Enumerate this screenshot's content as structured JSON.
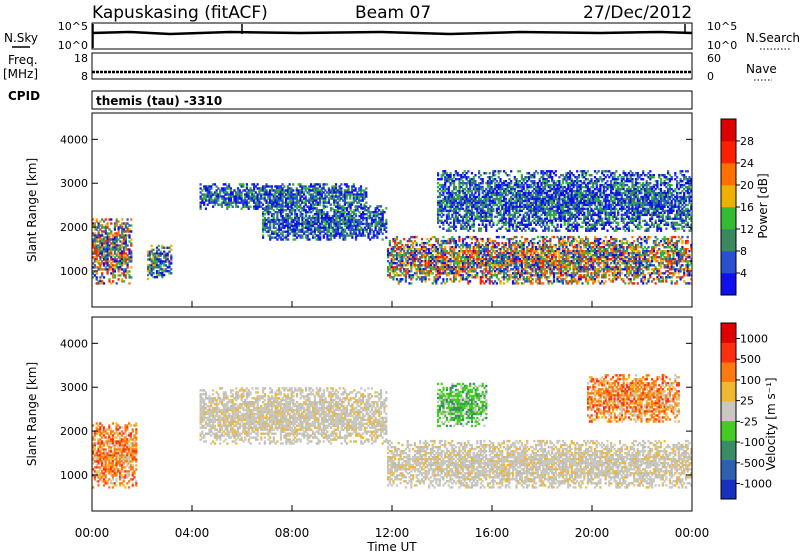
{
  "header": {
    "site": "Kapuskasing (fitACF)",
    "beam": "Beam 07",
    "date": "27/Dec/2012"
  },
  "aux_panels": {
    "nsky_label": "N.Sky",
    "nsky_ticks": [
      "10^5",
      "10^0"
    ],
    "nsearch_label": "N.Search",
    "nsearch_ticks": [
      "10^5",
      "10^0"
    ],
    "freq_label": "Freq.",
    "freq_unit": "[MHz]",
    "freq_ticks": [
      "18",
      "8"
    ],
    "nave_label": "Nave",
    "nave_ticks": [
      "60",
      "0"
    ],
    "cpid_label": "CPID",
    "cpid_value": "themis (tau) -3310"
  },
  "chart_data": [
    {
      "type": "heatmap",
      "title": "",
      "quantity": "Power",
      "ylabel": "Slant Range [km]",
      "ylim": [
        180,
        4600
      ],
      "y_ticks": [
        "1000",
        "2000",
        "3000",
        "4000"
      ],
      "xlim_hours": [
        0,
        24
      ],
      "colorbar": {
        "label": "Power [dB]",
        "ticks": [
          "4",
          "8",
          "12",
          "16",
          "20",
          "24",
          "28"
        ],
        "colors": [
          "#1010ee",
          "#2850d0",
          "#3a8860",
          "#33bb33",
          "#f0b000",
          "#ff7000",
          "#ff2000",
          "#dd0000"
        ]
      },
      "echo_regions": [
        {
          "t": [
            0.0,
            1.6
          ],
          "r": [
            700,
            2200
          ],
          "level": "strong"
        },
        {
          "t": [
            2.2,
            3.2
          ],
          "r": [
            800,
            1600
          ],
          "level": "medium"
        },
        {
          "t": [
            4.3,
            11.0
          ],
          "r": [
            2400,
            3000
          ],
          "level": "weak"
        },
        {
          "t": [
            6.8,
            11.8
          ],
          "r": [
            1700,
            2500
          ],
          "level": "weak"
        },
        {
          "t": [
            11.8,
            24.0
          ],
          "r": [
            700,
            1800
          ],
          "level": "strong"
        },
        {
          "t": [
            13.8,
            24.0
          ],
          "r": [
            1900,
            3300
          ],
          "level": "weak"
        }
      ]
    },
    {
      "type": "heatmap",
      "title": "",
      "quantity": "Velocity",
      "ylabel": "Slant Range [km]",
      "ylim": [
        180,
        4600
      ],
      "y_ticks": [
        "1000",
        "2000",
        "3000",
        "4000"
      ],
      "xlim_hours": [
        0,
        24
      ],
      "colorbar": {
        "label": "Velocity [m s⁻¹]",
        "ticks": [
          "1000",
          "500",
          "100",
          "25",
          "-25",
          "-100",
          "-500",
          "-1000"
        ],
        "colors": [
          "#1830c0",
          "#2e60b0",
          "#3a8c66",
          "#44cc22",
          "#c8c8c0",
          "#f0b830",
          "#ff7a10",
          "#ff3010",
          "#e00000"
        ]
      },
      "echo_regions": [
        {
          "t": [
            0.0,
            1.8
          ],
          "r": [
            700,
            2200
          ],
          "level": "negative"
        },
        {
          "t": [
            4.3,
            11.8
          ],
          "r": [
            1700,
            3000
          ],
          "level": "ground"
        },
        {
          "t": [
            11.8,
            24.0
          ],
          "r": [
            700,
            1800
          ],
          "level": "ground"
        },
        {
          "t": [
            13.8,
            15.8
          ],
          "r": [
            2100,
            3100
          ],
          "level": "positive"
        },
        {
          "t": [
            19.8,
            23.5
          ],
          "r": [
            2200,
            3300
          ],
          "level": "negative"
        }
      ]
    }
  ],
  "x_axis": {
    "label": "Time UT",
    "ticks": [
      "00:00",
      "04:00",
      "08:00",
      "12:00",
      "16:00",
      "20:00",
      "00:00"
    ]
  }
}
